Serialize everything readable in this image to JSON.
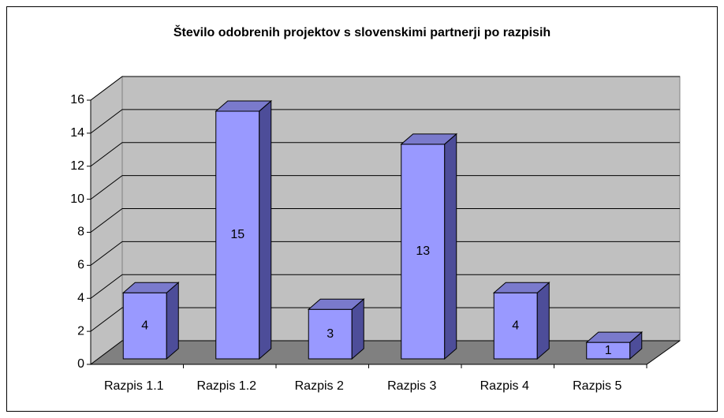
{
  "chart_data": {
    "type": "bar3d",
    "title": "Število odobrenih projektov s slovenskimi partnerji po razpisih",
    "categories": [
      "Razpis 1.1",
      "Razpis 1.2",
      "Razpis 2",
      "Razpis 3",
      "Razpis 4",
      "Razpis 5"
    ],
    "values": [
      4,
      15,
      3,
      13,
      4,
      1
    ],
    "color": "#9999ff",
    "ylim": [
      0,
      16
    ],
    "yticks": [
      0,
      2,
      4,
      6,
      8,
      10,
      12,
      14,
      16
    ],
    "grid": true
  }
}
